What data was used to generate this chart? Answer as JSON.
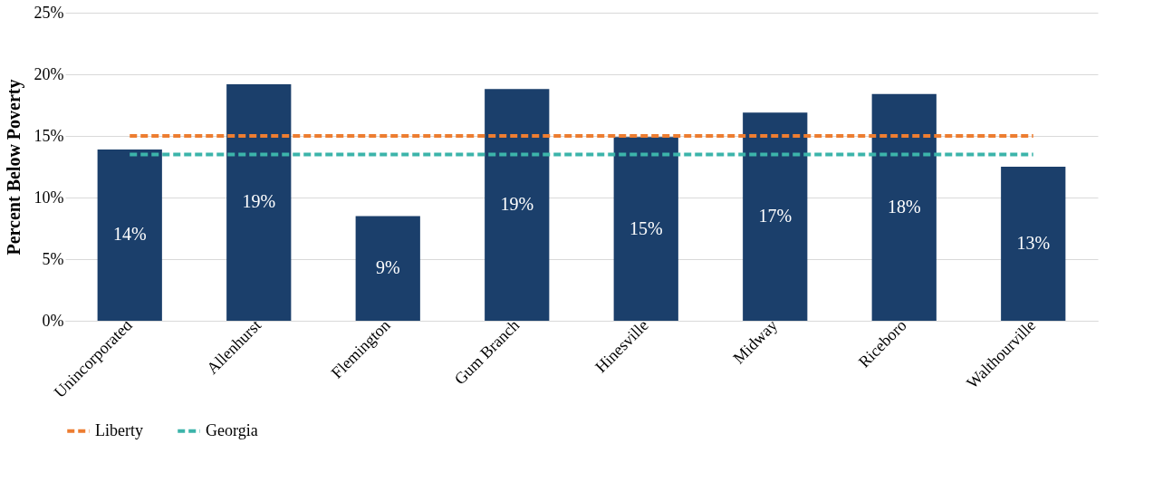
{
  "chart_data": {
    "type": "bar",
    "ylabel": "Percent Below Poverty",
    "categories": [
      "Unincorporated",
      "Allenhurst",
      "Flemington",
      "Gum Branch",
      "Hinesville",
      "Midway",
      "Riceboro",
      "Walthourville"
    ],
    "series": [
      {
        "color": "#1b3f6b",
        "values": [
          13.9,
          19.2,
          8.5,
          18.8,
          14.9,
          16.9,
          18.4,
          12.5
        ],
        "value_labels": [
          "14%",
          "19%",
          "9%",
          "19%",
          "15%",
          "17%",
          "18%",
          "13%"
        ]
      },
      {
        "type": "line",
        "name": "Liberty",
        "color": "#ed7d31",
        "values": [
          15,
          15,
          15,
          15,
          15,
          15,
          15,
          15
        ]
      },
      {
        "type": "line",
        "name": "Georgia",
        "color": "#3cb4aa",
        "values": [
          13.5,
          13.5,
          13.5,
          13.5,
          13.5,
          13.5,
          13.5,
          13.5
        ]
      }
    ],
    "ylim": [
      0,
      25
    ],
    "yticks": [
      {
        "value": 0,
        "label": "0%"
      },
      {
        "value": 5,
        "label": "5%"
      },
      {
        "value": 10,
        "label": "10%"
      },
      {
        "value": 15,
        "label": "15%"
      },
      {
        "value": 20,
        "label": "20%"
      },
      {
        "value": 25,
        "label": "25%"
      }
    ],
    "grid": "y",
    "legend": "bottom",
    "line_style": "dashed"
  }
}
